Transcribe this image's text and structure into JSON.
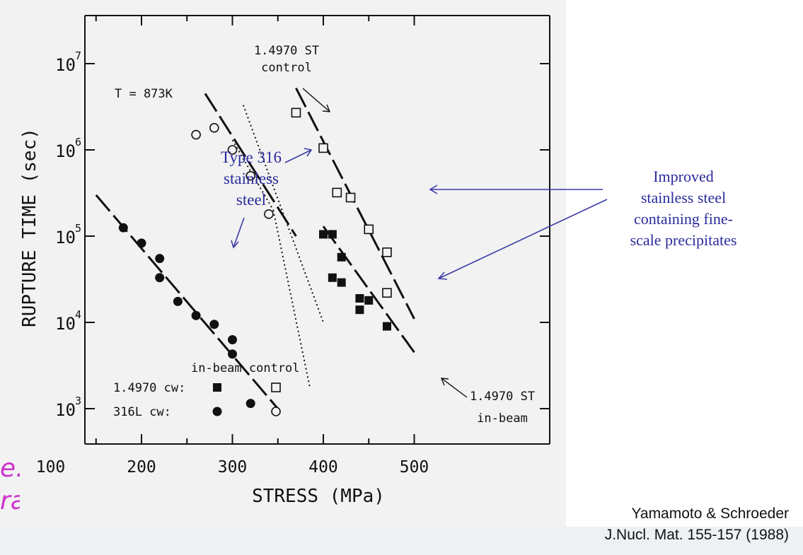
{
  "chart_data": {
    "type": "scatter",
    "title": "",
    "xlabel": "STRESS (MPa)",
    "ylabel": "RUPTURE TIME (sec)",
    "xlim": [
      130,
      540
    ],
    "ylim": [
      300,
      40000000
    ],
    "y_scale": "log",
    "x_ticks": [
      "100",
      "200",
      "300",
      "400",
      "500"
    ],
    "x_tick_values": [
      100,
      200,
      300,
      400,
      500
    ],
    "y_ticks": [
      "10",
      "10",
      "10",
      "10",
      "10"
    ],
    "y_tick_exponents": [
      "3",
      "4",
      "5",
      "6",
      "7"
    ],
    "y_tick_values": [
      1000,
      10000,
      100000,
      1000000,
      10000000
    ],
    "annotation_temperature": "T = 873K",
    "series": [
      {
        "name": "1.4970 cw: in-beam",
        "marker": "filled-square",
        "points": [
          [
            400,
            105000
          ],
          [
            410,
            105000
          ],
          [
            410,
            33000
          ],
          [
            420,
            57000
          ],
          [
            420,
            29000
          ],
          [
            440,
            19000
          ],
          [
            440,
            14000
          ],
          [
            450,
            18000
          ],
          [
            470,
            9000
          ]
        ]
      },
      {
        "name": "1.4970 cw: control",
        "marker": "open-square",
        "points": [
          [
            370,
            2700000
          ],
          [
            400,
            1050000
          ],
          [
            415,
            320000
          ],
          [
            430,
            280000
          ],
          [
            450,
            120000
          ],
          [
            470,
            65000
          ],
          [
            470,
            22000
          ]
        ]
      },
      {
        "name": "316L cw: in-beam",
        "marker": "filled-circle",
        "points": [
          [
            180,
            125000
          ],
          [
            200,
            83000
          ],
          [
            220,
            55000
          ],
          [
            220,
            33000
          ],
          [
            240,
            17500
          ],
          [
            260,
            12000
          ],
          [
            280,
            9500
          ],
          [
            300,
            6300
          ],
          [
            300,
            4300
          ],
          [
            320,
            1150
          ]
        ]
      },
      {
        "name": "316L cw: control",
        "marker": "open-circle",
        "points": [
          [
            260,
            1500000
          ],
          [
            280,
            1800000
          ],
          [
            300,
            1000000
          ],
          [
            320,
            500000
          ],
          [
            340,
            180000
          ]
        ]
      }
    ],
    "lines": [
      {
        "style": "dashed",
        "from": [
          150,
          300000
        ],
        "to": [
          350,
          1000
        ]
      },
      {
        "style": "dashed",
        "from": [
          270,
          4500000
        ],
        "to": [
          370,
          100000
        ]
      },
      {
        "style": "dashed",
        "from": [
          370,
          5200000
        ],
        "to": [
          500,
          11000
        ]
      },
      {
        "style": "dashed",
        "from": [
          400,
          130000
        ],
        "to": [
          500,
          4500
        ]
      },
      {
        "style": "dotted",
        "from": [
          312,
          3300000
        ],
        "to": [
          400,
          10000
        ]
      },
      {
        "style": "dotted",
        "from": [
          300,
          1300000
        ],
        "to": [
          345,
          200000
        ]
      },
      {
        "style": "dotted",
        "from": [
          345,
          200000
        ],
        "to": [
          385,
          1800
        ]
      }
    ],
    "legend": {
      "header": "in-beam control",
      "rows": [
        {
          "label": "1.4970 cw:",
          "in_beam": "filled-square",
          "control": "open-square"
        },
        {
          "label": "316L cw:",
          "in_beam": "filled-circle",
          "control": "open-circle"
        }
      ],
      "placement": "bottom-left"
    },
    "labels": {
      "st_control": [
        "1.4970 ST",
        "control"
      ],
      "st_inbeam": [
        "1.4970 ST",
        "in-beam"
      ]
    },
    "callouts": {
      "type316": [
        "Type 316",
        "stainless",
        "steel"
      ],
      "improved": [
        "Improved",
        "stainless steel",
        "containing fine-",
        "scale precipitates"
      ]
    },
    "colors": {
      "callout_text": "#2b2b9e",
      "callout_arrow": "#3a3aa8",
      "ink": "#111111"
    }
  },
  "citation": {
    "line1": "Yamamoto & Schroeder",
    "line2": "J.Nucl. Mat. 155-157 (1988)"
  },
  "cutoff_text": {
    "line1": "e.",
    "line2": "ra",
    "color": "#cc33cc"
  }
}
